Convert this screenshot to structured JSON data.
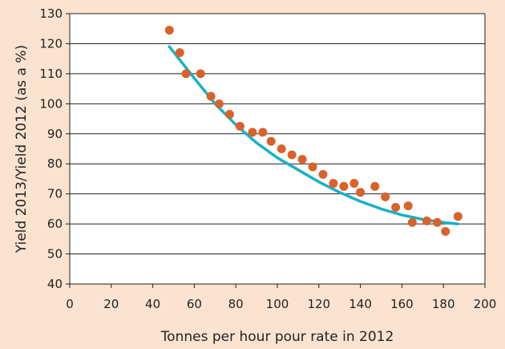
{
  "chart_data": {
    "type": "scatter",
    "xlabel": "Tonnes per hour pour rate in 2012",
    "ylabel": "Yield 2013/Yield 2012 (as a %)",
    "xlim": [
      0,
      200
    ],
    "ylim": [
      40,
      130
    ],
    "x_ticks": [
      0,
      20,
      40,
      60,
      80,
      100,
      120,
      140,
      160,
      180,
      200
    ],
    "y_ticks": [
      40,
      50,
      60,
      70,
      80,
      90,
      100,
      110,
      120,
      130
    ],
    "grid": "horizontal",
    "series": [
      {
        "kind": "points",
        "color": "#d9622b",
        "points": [
          [
            48,
            124.5
          ],
          [
            53,
            117
          ],
          [
            56,
            110
          ],
          [
            63,
            110
          ],
          [
            68,
            102.5
          ],
          [
            72,
            100
          ],
          [
            77,
            96.5
          ],
          [
            82,
            92.5
          ],
          [
            88,
            90.5
          ],
          [
            93,
            90.5
          ],
          [
            97,
            87.5
          ],
          [
            102,
            85
          ],
          [
            107,
            83
          ],
          [
            112,
            81.5
          ],
          [
            117,
            79
          ],
          [
            122,
            76.5
          ],
          [
            127,
            73.5
          ],
          [
            132,
            72.5
          ],
          [
            137,
            73.5
          ],
          [
            140,
            70.5
          ],
          [
            147,
            72.5
          ],
          [
            152,
            69
          ],
          [
            157,
            65.5
          ],
          [
            163,
            66
          ],
          [
            165,
            60.5
          ],
          [
            172,
            61
          ],
          [
            177,
            60.5
          ],
          [
            181,
            57.5
          ],
          [
            187,
            62.5
          ]
        ]
      },
      {
        "kind": "trendline",
        "color": "#1ab0c8",
        "points": [
          [
            48,
            119
          ],
          [
            60,
            108.5
          ],
          [
            70,
            100
          ],
          [
            80,
            93
          ],
          [
            90,
            87
          ],
          [
            100,
            82
          ],
          [
            110,
            78
          ],
          [
            120,
            74
          ],
          [
            130,
            70.5
          ],
          [
            140,
            67.5
          ],
          [
            150,
            65
          ],
          [
            160,
            63
          ],
          [
            170,
            61.5
          ],
          [
            180,
            60.5
          ],
          [
            187,
            60
          ]
        ]
      }
    ]
  }
}
